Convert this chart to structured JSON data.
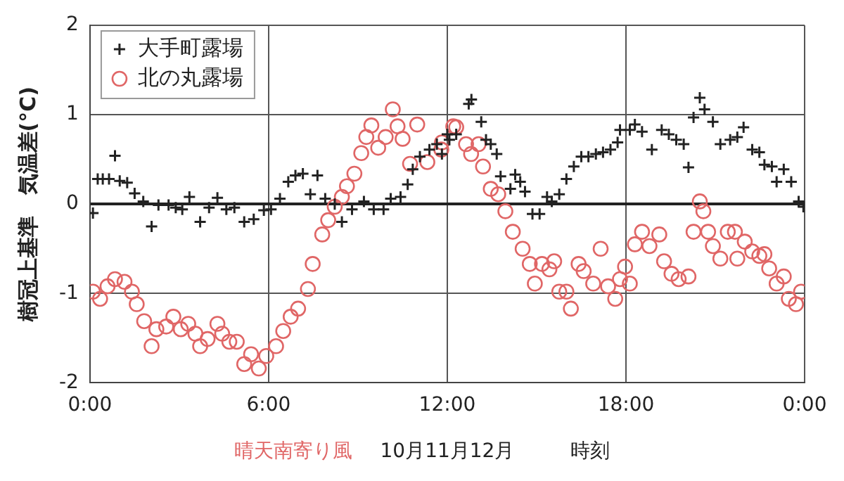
{
  "chart_data": {
    "type": "scatter",
    "xlabel": "時刻",
    "ylabel": "樹冠上基準　気温差(°C)",
    "annotations": [
      "晴天南寄り風",
      "10月11月12月"
    ],
    "xlim": [
      0,
      24
    ],
    "xticks": [
      {
        "value": 0,
        "label": "0:00"
      },
      {
        "value": 6,
        "label": "6:00"
      },
      {
        "value": 12,
        "label": "12:00"
      },
      {
        "value": 18,
        "label": "18:00"
      },
      {
        "value": 24,
        "label": "0:00"
      }
    ],
    "ylim": [
      -2,
      2
    ],
    "yticks": [
      -2,
      -1,
      0,
      1,
      2
    ],
    "grid": true,
    "legend": "top left",
    "series": [
      {
        "name": "大手町露場",
        "color": "#222222",
        "marker": "cross",
        "x": [
          0.1,
          0.26,
          0.43,
          0.64,
          0.84,
          1.0,
          1.25,
          1.5,
          1.79,
          2.07,
          2.3,
          2.64,
          2.88,
          3.1,
          3.34,
          3.7,
          4.0,
          4.28,
          4.58,
          4.85,
          5.18,
          5.5,
          5.84,
          6.08,
          6.38,
          6.66,
          6.9,
          7.15,
          7.4,
          7.64,
          7.9,
          8.22,
          8.46,
          8.8,
          9.2,
          9.53,
          9.86,
          10.1,
          10.43,
          10.67,
          10.84,
          11.08,
          11.4,
          11.65,
          11.82,
          12.0,
          12.07,
          12.3,
          12.72,
          12.81,
          13.14,
          13.3,
          13.46,
          13.66,
          13.79,
          14.12,
          14.28,
          14.45,
          14.61,
          14.86,
          15.1,
          15.35,
          15.51,
          15.76,
          16.0,
          16.25,
          16.5,
          16.74,
          16.99,
          17.23,
          17.48,
          17.72,
          17.8,
          18.13,
          18.3,
          18.54,
          18.87,
          19.2,
          19.44,
          19.69,
          19.94,
          20.1,
          20.27,
          20.48,
          20.64,
          20.92,
          21.17,
          21.5,
          21.74,
          21.95,
          22.24,
          22.48,
          22.65,
          22.9,
          23.06,
          23.3,
          23.55,
          23.8,
          23.96
        ],
        "values": [
          -0.1,
          0.28,
          0.28,
          0.28,
          0.54,
          0.26,
          0.24,
          0.12,
          0.03,
          -0.25,
          -0.01,
          -0.01,
          -0.04,
          -0.06,
          0.08,
          -0.2,
          -0.04,
          0.07,
          -0.06,
          -0.04,
          -0.2,
          -0.17,
          -0.07,
          -0.06,
          0.06,
          0.25,
          0.32,
          0.34,
          0.11,
          0.32,
          0.06,
          0,
          -0.2,
          -0.06,
          0.03,
          -0.06,
          -0.06,
          0.06,
          0.08,
          0.22,
          0.39,
          0.53,
          0.61,
          0.67,
          0.56,
          0.78,
          0.72,
          0.78,
          1.12,
          1.17,
          0.92,
          0.72,
          0.67,
          0.56,
          0.31,
          0.17,
          0.33,
          0.25,
          0.14,
          -0.11,
          -0.11,
          0.08,
          0.03,
          0.11,
          0.28,
          0.42,
          0.53,
          0.53,
          0.56,
          0.58,
          0.61,
          0.69,
          0.83,
          0.83,
          0.89,
          0.81,
          0.61,
          0.83,
          0.78,
          0.72,
          0.67,
          0.41,
          0.97,
          1.19,
          1.06,
          0.92,
          0.67,
          0.72,
          0.75,
          0.86,
          0.61,
          0.58,
          0.44,
          0.42,
          0.25,
          0.39,
          0.25,
          0.03,
          -0.03
        ]
      },
      {
        "name": "北の丸露場",
        "color": "#e06666",
        "marker": "circle",
        "x": [
          0.1,
          0.34,
          0.59,
          0.84,
          1.16,
          1.41,
          1.57,
          1.82,
          2.07,
          2.23,
          2.56,
          2.8,
          3.05,
          3.3,
          3.54,
          3.7,
          3.95,
          4.28,
          4.44,
          4.68,
          4.93,
          5.18,
          5.41,
          5.67,
          5.92,
          6.25,
          6.49,
          6.74,
          6.99,
          7.32,
          7.48,
          7.8,
          8.0,
          8.22,
          8.46,
          8.63,
          8.88,
          9.11,
          9.28,
          9.45,
          9.68,
          9.93,
          10.17,
          10.33,
          10.5,
          10.75,
          10.99,
          11.33,
          11.8,
          11.82,
          12.2,
          12.3,
          12.63,
          12.8,
          13.05,
          13.2,
          13.46,
          13.71,
          13.95,
          14.2,
          14.53,
          14.77,
          14.94,
          15.18,
          15.43,
          15.59,
          15.76,
          16.0,
          16.15,
          16.41,
          16.58,
          16.9,
          17.15,
          17.4,
          17.64,
          17.8,
          17.97,
          18.13,
          18.3,
          18.54,
          18.79,
          19.12,
          19.28,
          19.53,
          19.77,
          20.1,
          20.27,
          20.48,
          20.6,
          20.76,
          20.92,
          21.17,
          21.42,
          21.66,
          21.74,
          21.99,
          22.24,
          22.48,
          22.65,
          22.81,
          23.06,
          23.3,
          23.47,
          23.71,
          23.88
        ],
        "values": [
          -0.98,
          -1.06,
          -0.92,
          -0.84,
          -0.87,
          -0.98,
          -1.12,
          -1.31,
          -1.59,
          -1.4,
          -1.37,
          -1.26,
          -1.4,
          -1.34,
          -1.45,
          -1.59,
          -1.51,
          -1.34,
          -1.45,
          -1.54,
          -1.54,
          -1.79,
          -1.68,
          -1.84,
          -1.7,
          -1.59,
          -1.42,
          -1.26,
          -1.17,
          -0.95,
          -0.67,
          -0.34,
          -0.18,
          -0.03,
          0.08,
          0.2,
          0.34,
          0.57,
          0.75,
          0.88,
          0.63,
          0.75,
          1.06,
          0.87,
          0.73,
          0.45,
          0.89,
          0.47,
          0.61,
          0.69,
          0.87,
          0.86,
          0.67,
          0.56,
          0.67,
          0.42,
          0.17,
          0.11,
          -0.08,
          -0.31,
          -0.5,
          -0.67,
          -0.89,
          -0.67,
          -0.73,
          -0.64,
          -0.98,
          -0.98,
          -1.17,
          -0.67,
          -0.75,
          -0.89,
          -0.5,
          -0.92,
          -1.06,
          -0.84,
          -0.7,
          -0.89,
          -0.45,
          -0.31,
          -0.47,
          -0.34,
          -0.64,
          -0.78,
          -0.84,
          -0.81,
          -0.31,
          0.03,
          -0.08,
          -0.31,
          -0.47,
          -0.61,
          -0.31,
          -0.31,
          -0.61,
          -0.42,
          -0.53,
          -0.58,
          -0.56,
          -0.72,
          -0.89,
          -0.81,
          -1.06,
          -1.12,
          -0.98
        ]
      }
    ]
  }
}
